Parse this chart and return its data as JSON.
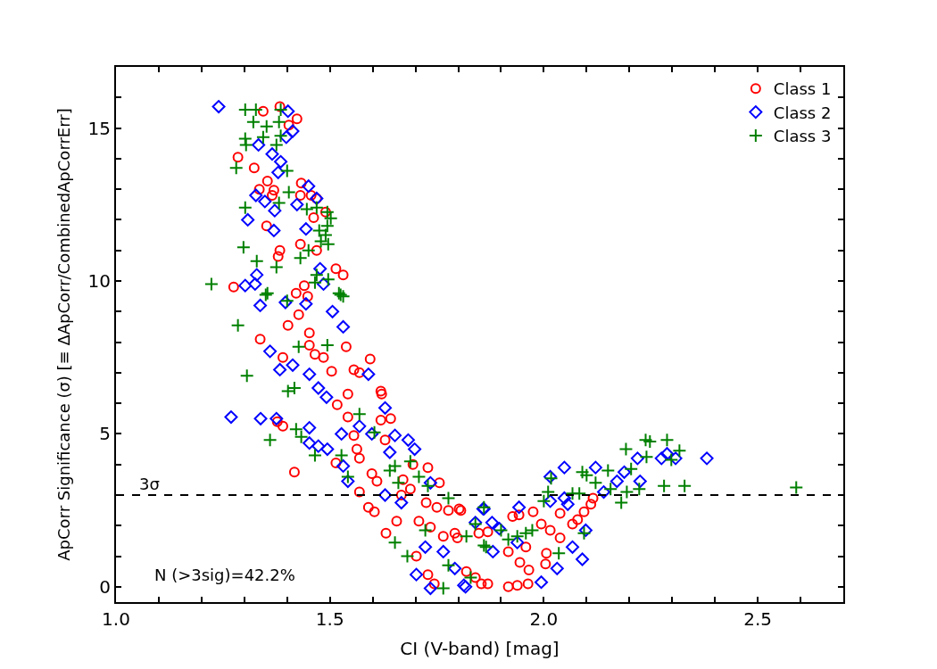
{
  "chart_data": {
    "type": "scatter",
    "xlabel": "CI (V-band) [mag]",
    "ylabel": "ApCorr Significance (σ) [≡ ΔApCorr/CombinedApCorrErr]",
    "xlim": [
      1.0,
      2.7
    ],
    "xticks": [
      {
        "value": 1.0,
        "label": "1.0"
      },
      {
        "value": 1.1,
        "label": null
      },
      {
        "value": 1.2,
        "label": null
      },
      {
        "value": 1.3,
        "label": null
      },
      {
        "value": 1.4,
        "label": null
      },
      {
        "value": 1.5,
        "label": "1.5"
      },
      {
        "value": 1.6,
        "label": null
      },
      {
        "value": 1.7,
        "label": null
      },
      {
        "value": 1.8,
        "label": null
      },
      {
        "value": 1.9,
        "label": null
      },
      {
        "value": 2.0,
        "label": "2.0"
      },
      {
        "value": 2.1,
        "label": null
      },
      {
        "value": 2.2,
        "label": null
      },
      {
        "value": 2.3,
        "label": null
      },
      {
        "value": 2.4,
        "label": null
      },
      {
        "value": 2.5,
        "label": "2.5"
      },
      {
        "value": 2.6,
        "label": null
      }
    ],
    "ylim": [
      -0.5,
      17
    ],
    "yticks": [
      0,
      {
        "value": 1,
        "label": null
      },
      {
        "value": 2,
        "label": null
      },
      {
        "value": 3,
        "label": null
      },
      {
        "value": 4,
        "label": null
      },
      5,
      {
        "value": 6,
        "label": null
      },
      {
        "value": 7,
        "label": null
      },
      {
        "value": 8,
        "label": null
      },
      {
        "value": 9,
        "label": null
      },
      10,
      {
        "value": 11,
        "label": null
      },
      {
        "value": 12,
        "label": null
      },
      {
        "value": 13,
        "label": null
      },
      {
        "value": 14,
        "label": null
      },
      15,
      {
        "value": 16,
        "label": null
      }
    ],
    "legend": "top right",
    "ref_lines": [
      {
        "axis": "y",
        "value": 3,
        "label": "3σ",
        "color": "#000000",
        "line_style": "dashed"
      }
    ],
    "annotations": [
      "N (>3sig)=42.2%"
    ],
    "series": [
      {
        "name": "Class 1",
        "color": "#ff0000",
        "marker": "circle",
        "x": [
          1.275,
          1.344,
          1.383,
          1.423,
          1.404,
          1.285,
          1.323,
          1.354,
          1.335,
          1.369,
          1.365,
          1.433,
          1.431,
          1.456,
          1.469,
          1.49,
          1.462,
          1.352,
          1.431,
          1.469,
          1.383,
          1.379,
          1.44,
          1.421,
          1.448,
          1.427,
          1.402,
          1.337,
          1.452,
          1.514,
          1.531,
          1.39,
          1.452,
          1.465,
          1.485,
          1.504,
          1.542,
          1.517,
          1.542,
          1.556,
          1.514,
          1.417,
          1.377,
          1.39,
          1.538,
          1.556,
          1.569,
          1.594,
          1.619,
          1.621,
          1.642,
          1.619,
          1.629,
          1.563,
          1.569,
          1.598,
          1.61,
          1.569,
          1.59,
          1.604,
          1.631,
          1.656,
          1.671,
          1.694,
          1.729,
          1.756,
          1.688,
          1.667,
          1.725,
          1.75,
          1.777,
          1.806,
          1.708,
          1.735,
          1.765,
          1.798,
          1.702,
          1.729,
          1.744,
          1.819,
          1.84,
          1.854,
          1.792,
          1.869,
          1.917,
          1.938,
          1.963,
          1.917,
          1.944,
          1.965,
          2.004,
          2.006,
          2.038,
          1.994,
          2.015,
          2.038,
          1.975,
          1.927,
          1.942,
          1.848,
          1.869,
          1.802,
          2.067,
          2.079,
          2.094,
          2.11,
          2.115,
          1.958
        ],
        "values": [
          9.8,
          15.55,
          15.7,
          15.3,
          15.1,
          14.05,
          13.7,
          13.27,
          13.0,
          12.97,
          12.8,
          13.2,
          12.8,
          12.8,
          12.7,
          12.25,
          12.07,
          11.8,
          11.2,
          11.0,
          11.0,
          10.8,
          9.85,
          9.6,
          9.5,
          8.9,
          8.55,
          8.1,
          8.3,
          10.4,
          10.2,
          7.5,
          7.9,
          7.6,
          7.5,
          7.05,
          6.3,
          5.95,
          5.55,
          4.95,
          4.05,
          3.75,
          5.4,
          5.25,
          7.85,
          7.1,
          7.0,
          7.45,
          6.4,
          6.3,
          5.5,
          5.45,
          4.8,
          4.5,
          4.2,
          3.7,
          3.45,
          3.1,
          2.6,
          2.45,
          1.75,
          2.15,
          3.5,
          4.0,
          3.9,
          3.4,
          3.2,
          3.0,
          2.75,
          2.6,
          2.5,
          2.5,
          2.15,
          1.95,
          1.65,
          1.6,
          1.0,
          0.4,
          0.1,
          0.5,
          0.3,
          0.1,
          1.75,
          0.1,
          0.0,
          0.05,
          0.1,
          1.15,
          0.8,
          0.55,
          0.75,
          1.1,
          1.6,
          2.05,
          1.85,
          2.4,
          2.45,
          2.3,
          2.35,
          1.75,
          1.8,
          2.55,
          2.05,
          2.2,
          2.45,
          2.7,
          2.9,
          1.3
        ]
      },
      {
        "name": "Class 2",
        "color": "#0000ff",
        "marker": "diamond",
        "x": [
          1.24,
          1.402,
          1.413,
          1.398,
          1.333,
          1.365,
          1.385,
          1.379,
          1.45,
          1.327,
          1.348,
          1.371,
          1.423,
          1.469,
          1.308,
          1.369,
          1.444,
          1.329,
          1.302,
          1.325,
          1.477,
          1.485,
          1.506,
          1.531,
          1.337,
          1.396,
          1.444,
          1.36,
          1.383,
          1.413,
          1.452,
          1.473,
          1.492,
          1.269,
          1.338,
          1.375,
          1.452,
          1.452,
          1.473,
          1.494,
          1.531,
          1.542,
          1.527,
          1.569,
          1.598,
          1.59,
          1.629,
          1.652,
          1.683,
          1.698,
          1.64,
          1.735,
          1.629,
          1.667,
          1.723,
          1.765,
          1.702,
          1.735,
          1.817,
          1.86,
          1.792,
          1.813,
          1.858,
          1.879,
          1.896,
          1.942,
          1.994,
          2.031,
          2.015,
          2.015,
          2.048,
          2.048,
          2.056,
          2.067,
          2.09,
          2.098,
          2.121,
          2.14,
          2.171,
          2.188,
          2.219,
          2.225,
          2.275,
          2.288,
          2.308,
          2.381,
          1.84,
          1.881,
          1.938
        ],
        "values": [
          15.7,
          15.55,
          14.9,
          14.7,
          14.45,
          14.15,
          13.9,
          13.55,
          13.1,
          12.8,
          12.6,
          12.3,
          12.5,
          12.7,
          12.0,
          11.65,
          11.7,
          10.2,
          9.85,
          9.9,
          10.4,
          9.9,
          9.0,
          8.5,
          9.2,
          9.3,
          9.25,
          7.7,
          7.1,
          7.25,
          6.95,
          6.5,
          6.2,
          5.55,
          5.5,
          5.5,
          5.2,
          4.7,
          4.6,
          4.5,
          3.95,
          3.45,
          5.0,
          5.25,
          5.0,
          6.95,
          5.85,
          4.95,
          4.8,
          4.5,
          4.4,
          3.4,
          3.0,
          2.75,
          1.3,
          1.15,
          0.4,
          -0.05,
          0.0,
          2.55,
          0.6,
          0.05,
          2.55,
          2.1,
          1.9,
          2.6,
          0.15,
          0.6,
          2.8,
          3.6,
          3.9,
          2.9,
          2.7,
          1.3,
          0.9,
          1.85,
          3.9,
          3.1,
          3.45,
          3.75,
          4.2,
          3.45,
          4.2,
          4.35,
          4.2,
          4.2,
          2.1,
          1.15,
          1.45
        ]
      },
      {
        "name": "Class 3",
        "color": "#008000",
        "marker": "cross",
        "x": [
          1.302,
          1.327,
          1.385,
          1.321,
          1.352,
          1.381,
          1.302,
          1.344,
          1.385,
          1.304,
          1.375,
          1.281,
          1.4,
          1.404,
          1.381,
          1.302,
          1.446,
          1.469,
          1.494,
          1.502,
          1.494,
          1.475,
          1.49,
          1.298,
          1.479,
          1.496,
          1.45,
          1.329,
          1.431,
          1.375,
          1.223,
          1.354,
          1.4,
          1.469,
          1.496,
          1.521,
          1.531,
          1.285,
          1.35,
          1.465,
          1.525,
          1.427,
          1.494,
          1.306,
          1.402,
          1.417,
          1.36,
          1.421,
          1.433,
          1.465,
          1.527,
          1.542,
          1.569,
          1.604,
          1.64,
          1.652,
          1.66,
          1.688,
          1.708,
          1.729,
          1.777,
          1.652,
          1.681,
          1.765,
          1.723,
          1.819,
          1.86,
          1.829,
          1.777,
          1.86,
          1.84,
          1.865,
          1.9,
          1.917,
          1.938,
          1.958,
          1.973,
          2.0,
          2.017,
          2.01,
          2.035,
          2.067,
          2.083,
          2.09,
          2.1,
          2.094,
          2.121,
          2.15,
          2.156,
          2.181,
          2.194,
          2.192,
          2.204,
          2.223,
          2.238,
          2.248,
          2.24,
          2.281,
          2.288,
          2.298,
          2.317,
          2.329,
          2.59
        ],
        "values": [
          15.6,
          15.6,
          15.6,
          15.2,
          15.05,
          15.2,
          14.65,
          14.7,
          14.75,
          14.45,
          14.45,
          13.7,
          13.6,
          12.9,
          12.55,
          12.4,
          12.35,
          12.4,
          12.25,
          12.05,
          11.8,
          11.65,
          11.5,
          11.1,
          11.3,
          11.2,
          11.0,
          10.65,
          10.75,
          10.45,
          9.9,
          9.6,
          9.35,
          10.2,
          10.05,
          9.6,
          9.5,
          8.55,
          9.55,
          9.95,
          9.55,
          7.85,
          7.9,
          6.9,
          6.4,
          6.5,
          4.8,
          5.15,
          4.9,
          4.3,
          4.3,
          3.6,
          5.65,
          5.05,
          3.8,
          3.95,
          3.4,
          4.1,
          3.6,
          3.3,
          2.9,
          1.45,
          1.0,
          -0.05,
          1.85,
          1.65,
          1.35,
          0.3,
          0.7,
          2.6,
          2.05,
          1.3,
          1.85,
          1.55,
          1.65,
          1.75,
          1.85,
          2.8,
          3.55,
          3.1,
          1.1,
          3.05,
          3.05,
          3.75,
          3.65,
          1.75,
          3.4,
          3.8,
          3.2,
          2.75,
          3.1,
          4.5,
          3.85,
          3.2,
          4.8,
          4.75,
          4.25,
          3.3,
          4.8,
          4.15,
          4.45,
          3.3,
          3.25
        ]
      }
    ]
  }
}
